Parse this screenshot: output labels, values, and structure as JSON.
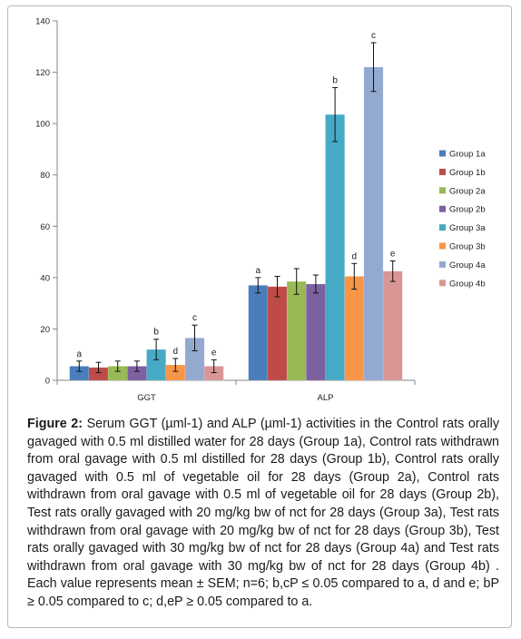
{
  "chart_data": {
    "type": "bar",
    "categories": [
      "GGT",
      "ALP"
    ],
    "ylim": [
      0,
      140
    ],
    "yticks": [
      0,
      20,
      40,
      60,
      80,
      100,
      120,
      140
    ],
    "grid": false,
    "legend_position": "right",
    "series": [
      {
        "name": "Group 1a",
        "color": "#4a7ebb",
        "values": [
          5.5,
          37
        ],
        "errors": [
          2,
          3
        ],
        "labels": [
          "a",
          "a"
        ]
      },
      {
        "name": "Group 1b",
        "color": "#be4b48",
        "values": [
          5,
          36.5
        ],
        "errors": [
          2,
          4
        ],
        "labels": [
          "",
          ""
        ]
      },
      {
        "name": "Group 2a",
        "color": "#98b954",
        "values": [
          5.5,
          38.5
        ],
        "errors": [
          2,
          5
        ],
        "labels": [
          "",
          ""
        ]
      },
      {
        "name": "Group 2b",
        "color": "#7d60a0",
        "values": [
          5.5,
          37.5
        ],
        "errors": [
          2,
          3.5
        ],
        "labels": [
          "",
          ""
        ]
      },
      {
        "name": "Group 3a",
        "color": "#46aac5",
        "values": [
          12,
          103.5
        ],
        "errors": [
          4,
          10.5
        ],
        "labels": [
          "b",
          "b"
        ]
      },
      {
        "name": "Group 3b",
        "color": "#f79646",
        "values": [
          6,
          40.5
        ],
        "errors": [
          2.5,
          5
        ],
        "labels": [
          "d",
          "d"
        ]
      },
      {
        "name": "Group 4a",
        "color": "#93a9cf",
        "values": [
          16.5,
          122
        ],
        "errors": [
          5,
          9.5
        ],
        "labels": [
          "c",
          "c"
        ]
      },
      {
        "name": "Group 4b",
        "color": "#d99694",
        "values": [
          5.5,
          42.5
        ],
        "errors": [
          2.5,
          4
        ],
        "labels": [
          "e",
          "e"
        ]
      }
    ]
  },
  "caption": {
    "label": "Figure 2:",
    "text": " Serum GGT (µml-1) and ALP (µml-1) activities in the Control rats orally gavaged with 0.5 ml distilled water for 28 days (Group 1a), Control rats withdrawn from oral gavage with 0.5 ml distilled for 28 days (Group 1b), Control rats orally gavaged with 0.5 ml of vegetable oil for 28 days (Group 2a), Control rats withdrawn from oral gavage with 0.5 ml of vegetable oil for 28 days (Group 2b), Test rats orally gavaged with 20 mg/kg bw of nct for 28 days (Group 3a), Test rats withdrawn from oral gavage with 20 mg/kg bw of nct for 28 days (Group 3b), Test rats orally gavaged with 30 mg/kg bw of nct for 28 days (Group 4a) and Test rats withdrawn from oral gavage with 30 mg/kg bw of nct for 28 days (Group 4b) . Each value represents mean ± SEM; n=6; b,cP ≤ 0.05 compared to a, d and e; bP ≥ 0.05 compared to c; d,eP ≥ 0.05 compared to a."
  }
}
